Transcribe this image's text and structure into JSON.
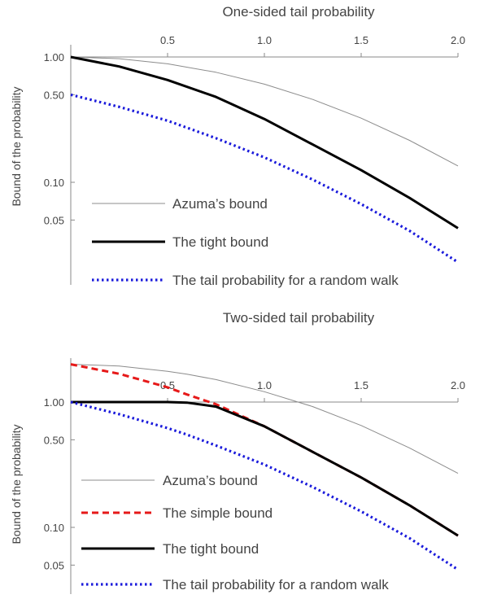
{
  "chart_data": [
    {
      "type": "line",
      "title": "One-sided tail probability",
      "xlabel": "",
      "ylabel": "Bound of the probability",
      "xlim": [
        0,
        2.0
      ],
      "ylim": [
        0.025,
        1.0
      ],
      "yscale": "log",
      "xticks": [
        "0.5",
        "1.0",
        "1.5",
        "2.0"
      ],
      "yticks": [
        "1.00",
        "0.50",
        "0.10",
        "0.05"
      ],
      "x": [
        0,
        0.25,
        0.5,
        0.75,
        1.0,
        1.25,
        1.5,
        1.75,
        2.0
      ],
      "series": [
        {
          "name": "Azuma’s bound",
          "color": "#8c8c8c",
          "style": "solid",
          "values": [
            1.0,
            0.969,
            0.882,
            0.755,
            0.607,
            0.458,
            0.325,
            0.216,
            0.135
          ]
        },
        {
          "name": "The tight bound",
          "color": "#000000",
          "style": "solid",
          "values": [
            1.0,
            0.84,
            0.655,
            0.48,
            0.32,
            0.2,
            0.125,
            0.075,
            0.043
          ]
        },
        {
          "name": "The tail probability for a random walk",
          "color": "#1a1adb",
          "style": "dotted",
          "values": [
            0.5,
            0.4,
            0.31,
            0.225,
            0.158,
            0.105,
            0.067,
            0.041,
            0.023
          ]
        }
      ],
      "legend": "bottom-left"
    },
    {
      "type": "line",
      "title": "Two-sided tail probability",
      "xlabel": "",
      "ylabel": "Bound of the probability",
      "xlim": [
        0,
        2.0
      ],
      "ylim": [
        0.04,
        2.0
      ],
      "yscale": "log",
      "xticks": [
        "0.5",
        "1.0",
        "1.5",
        "2.0"
      ],
      "yticks": [
        "1.00",
        "0.50",
        "0.10",
        "0.05"
      ],
      "x": [
        0,
        0.25,
        0.5,
        0.6,
        0.75,
        1.0,
        1.25,
        1.5,
        1.75,
        2.0
      ],
      "series": [
        {
          "name": "Azuma’s bound",
          "color": "#8c8c8c",
          "style": "solid",
          "values": [
            2.0,
            1.94,
            1.76,
            1.67,
            1.51,
            1.21,
            0.92,
            0.65,
            0.43,
            0.27
          ]
        },
        {
          "name": "The simple bound",
          "color": "#e61919",
          "style": "dashed",
          "values": [
            2.0,
            1.68,
            1.31,
            1.15,
            0.96,
            0.64,
            0.4,
            0.25,
            0.15,
            0.086
          ]
        },
        {
          "name": "The tight bound",
          "color": "#000000",
          "style": "solid",
          "values": [
            1.0,
            1.0,
            1.0,
            0.99,
            0.92,
            0.64,
            0.4,
            0.25,
            0.15,
            0.086
          ]
        },
        {
          "name": "The tail probability for a random walk",
          "color": "#1a1adb",
          "style": "dotted",
          "values": [
            1.0,
            0.8,
            0.62,
            0.55,
            0.45,
            0.317,
            0.21,
            0.134,
            0.082,
            0.046
          ]
        }
      ],
      "legend": "bottom-left"
    }
  ]
}
